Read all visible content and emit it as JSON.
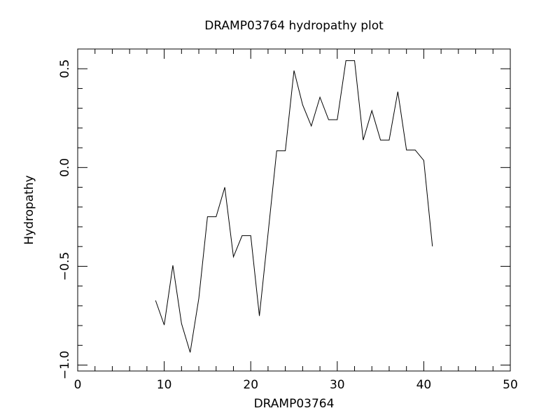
{
  "chart_data": {
    "type": "line",
    "title": "DRAMP03764 hydropathy plot",
    "xlabel": "DRAMP03764",
    "ylabel": "Hydropathy",
    "x": [
      9,
      10,
      11,
      12,
      13,
      14,
      15,
      16,
      17,
      18,
      19,
      20,
      21,
      22,
      23,
      24,
      25,
      26,
      27,
      28,
      29,
      30,
      31,
      32,
      33,
      34,
      35,
      36,
      37,
      38,
      39,
      40,
      41
    ],
    "series": [
      {
        "color": "#000000",
        "values": [
          -0.673,
          -0.797,
          -0.495,
          -0.79,
          -0.936,
          -0.662,
          -0.249,
          -0.249,
          -0.1,
          -0.452,
          -0.345,
          -0.345,
          -0.751,
          -0.335,
          0.085,
          0.085,
          0.491,
          0.317,
          0.21,
          0.356,
          0.242,
          0.242,
          0.541,
          0.541,
          0.139,
          0.288,
          0.139,
          0.139,
          0.384,
          0.089,
          0.089,
          0.036,
          -0.399
        ]
      }
    ],
    "xlim": [
      0,
      50
    ],
    "ylim": [
      -1.03,
      0.6
    ],
    "xticks": [
      0,
      10,
      20,
      30,
      40,
      50
    ],
    "xminorticks": [
      2,
      4,
      6,
      8,
      12,
      14,
      16,
      18,
      22,
      24,
      26,
      28,
      32,
      34,
      36,
      38,
      42,
      44,
      46,
      48
    ],
    "yticks": [
      {
        "value": -1.0,
        "label": "−1.0"
      },
      {
        "value": -0.5,
        "label": "−0.5"
      },
      {
        "value": 0,
        "label": "0.0"
      },
      0.5
    ],
    "yminorticks": [
      -0.9,
      -0.8,
      -0.7,
      -0.6,
      -0.4,
      -0.3,
      -0.2,
      -0.1,
      0.1,
      0.2,
      0.3,
      0.4
    ]
  }
}
